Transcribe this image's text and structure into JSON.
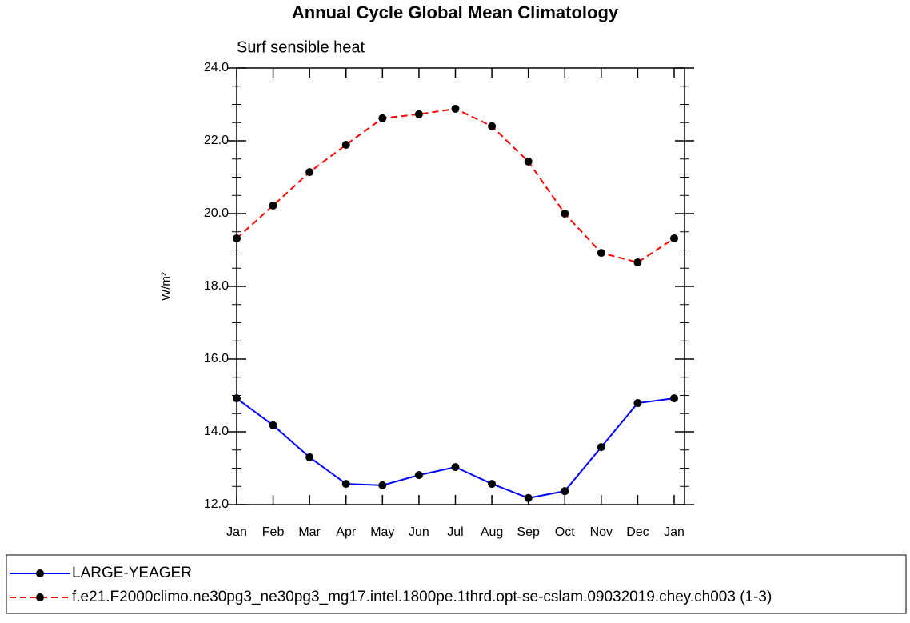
{
  "chart_data": {
    "type": "line",
    "title": "Annual Cycle Global Mean Climatology",
    "subtitle": "Surf sensible heat",
    "y_label": "W/m²",
    "categories": [
      "Jan",
      "Feb",
      "Mar",
      "Apr",
      "May",
      "Jun",
      "Jul",
      "Aug",
      "Sep",
      "Oct",
      "Nov",
      "Dec",
      "Jan"
    ],
    "series": [
      {
        "name": "LARGE-YEAGER",
        "color": "#0000ff",
        "dash": false,
        "values": [
          14.92,
          14.18,
          13.3,
          12.57,
          12.53,
          12.81,
          13.03,
          12.57,
          12.18,
          12.37,
          13.58,
          14.79,
          14.92
        ]
      },
      {
        "name": "f.e21.F2000climo.ne30pg3_ne30pg3_mg17.intel.1800pe.1thrd.opt-se-cslam.09032019.chey.ch003 (1-3)",
        "color": "#ff0000",
        "dash": true,
        "values": [
          19.32,
          20.22,
          21.14,
          21.89,
          22.62,
          22.73,
          22.88,
          22.4,
          21.43,
          20.0,
          18.92,
          18.66,
          19.32
        ]
      }
    ],
    "ylim": [
      12,
      24
    ],
    "yticks": [
      {
        "value": 12,
        "label": "12.0"
      },
      {
        "value": 14,
        "label": "14.0"
      },
      {
        "value": 16,
        "label": "16.0"
      },
      {
        "value": 18,
        "label": "18.0"
      },
      {
        "value": 20,
        "label": "20.0"
      },
      {
        "value": 22,
        "label": "22.0"
      },
      {
        "value": 24,
        "label": "24.0"
      }
    ],
    "yminorticks": [
      12.5,
      13,
      13.5,
      14.5,
      15,
      15.5,
      16.5,
      17,
      17.5,
      18.5,
      19,
      19.5,
      20.5,
      21,
      21.5,
      22.5,
      23,
      23.5
    ],
    "grid": false,
    "legend": "bottom"
  }
}
